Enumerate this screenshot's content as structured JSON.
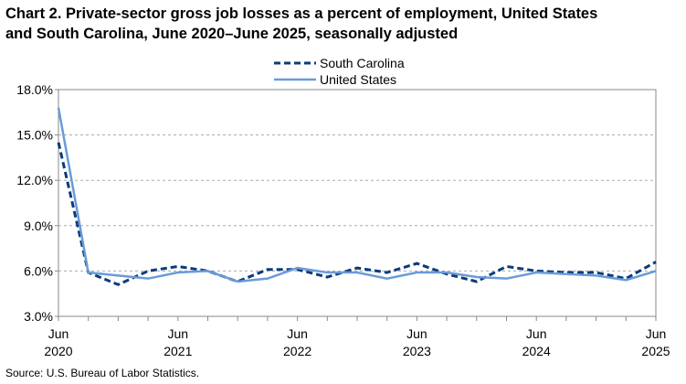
{
  "chart_data": {
    "type": "line",
    "title": [
      "Chart 2. Private-sector gross job losses as a percent of employment, United States",
      "and South Carolina, June 2020–June 2025, seasonally adjusted"
    ],
    "source": "Source: U.S. Bureau of Labor Statistics.",
    "categories": [
      [
        "Jun",
        "2020"
      ],
      null,
      null,
      null,
      [
        "Jun",
        "2021"
      ],
      null,
      null,
      null,
      [
        "Jun",
        "2022"
      ],
      null,
      null,
      null,
      [
        "Jun",
        "2023"
      ],
      null,
      null,
      null,
      [
        "Jun",
        "2024"
      ],
      null,
      null,
      null,
      [
        "Jun",
        "2025"
      ]
    ],
    "series": [
      {
        "name": "South Carolina",
        "color": "#0b3b7a",
        "line_style": "dashed",
        "values": [
          14.5,
          5.9,
          5.1,
          6.0,
          6.3,
          6.0,
          5.3,
          6.1,
          6.1,
          5.6,
          6.2,
          5.9,
          6.5,
          5.8,
          5.3,
          6.3,
          6.0,
          5.9,
          5.9,
          5.5,
          6.6
        ]
      },
      {
        "name": "United States",
        "color": "#6a9bd8",
        "line_style": "solid",
        "values": [
          16.8,
          5.9,
          5.7,
          5.5,
          5.9,
          6.0,
          5.3,
          5.5,
          6.2,
          5.9,
          5.9,
          5.5,
          5.9,
          5.9,
          5.6,
          5.5,
          5.9,
          5.8,
          5.7,
          5.4,
          6.0
        ]
      }
    ],
    "ylim": [
      3,
      18
    ],
    "yticks": [
      {
        "value": 3,
        "label": "3.0%"
      },
      {
        "value": 6,
        "label": "6.0%"
      },
      {
        "value": 9,
        "label": "9.0%"
      },
      {
        "value": 12,
        "label": "12.0%"
      },
      {
        "value": 15,
        "label": "15.0%"
      },
      {
        "value": 18,
        "label": "18.0%"
      }
    ],
    "grid": true,
    "legend": "top"
  }
}
